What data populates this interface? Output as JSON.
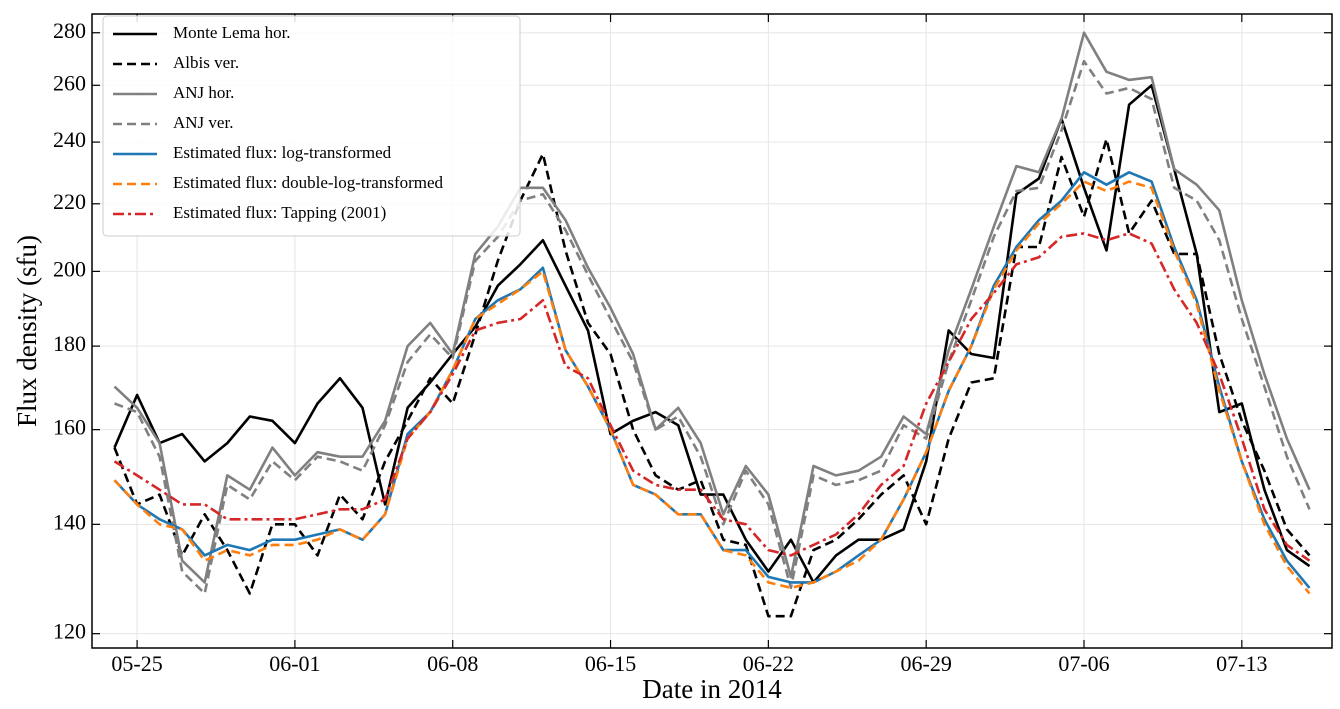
{
  "chart_data": {
    "type": "line",
    "x_label": "Date in 2014",
    "y_label": "Flux density (sfu)",
    "x": [
      "05-24",
      "05-25",
      "05-26",
      "05-27",
      "05-28",
      "05-29",
      "05-30",
      "05-31",
      "06-01",
      "06-02",
      "06-03",
      "06-04",
      "06-05",
      "06-06",
      "06-07",
      "06-08",
      "06-09",
      "06-10",
      "06-11",
      "06-12",
      "06-13",
      "06-14",
      "06-15",
      "06-16",
      "06-17",
      "06-18",
      "06-19",
      "06-20",
      "06-21",
      "06-22",
      "06-23",
      "06-24",
      "06-25",
      "06-26",
      "06-27",
      "06-28",
      "06-29",
      "06-30",
      "07-01",
      "07-02",
      "07-03",
      "07-04",
      "07-05",
      "07-06",
      "07-07",
      "07-08",
      "07-09",
      "07-10",
      "07-11",
      "07-12",
      "07-13",
      "07-14",
      "07-15",
      "07-16"
    ],
    "xlim": [
      "05-23",
      "07-17"
    ],
    "xticks": [
      "05-25",
      "06-01",
      "06-08",
      "06-15",
      "06-22",
      "06-29",
      "07-06",
      "07-13"
    ],
    "ylim": [
      117.6,
      287.5
    ],
    "yticks": [
      120,
      140,
      160,
      180,
      200,
      220,
      240,
      260,
      280
    ],
    "y_scale": "log",
    "grid": true,
    "legend": "upper left",
    "series": [
      {
        "name": "Monte Lema hor.",
        "color": "#000000",
        "dash": "solid",
        "values": [
          156,
          168,
          157,
          159,
          153,
          157,
          163,
          162,
          157,
          166,
          172,
          165,
          144,
          165,
          171,
          178,
          185,
          196,
          202,
          209,
          196,
          184,
          159,
          162,
          164,
          161,
          146,
          146,
          137,
          131,
          137,
          129,
          134,
          137,
          137,
          139,
          153,
          184,
          178,
          177,
          223,
          228,
          248,
          225,
          206,
          253,
          260,
          231,
          205,
          164,
          166,
          147,
          135,
          132
        ]
      },
      {
        "name": "Albis ver.",
        "color": "#000000",
        "dash": "dashed",
        "values": [
          156,
          144,
          146,
          134,
          142,
          135,
          127,
          140,
          140,
          134,
          146,
          141,
          153,
          162,
          172,
          166,
          183,
          203,
          221,
          236,
          206,
          186,
          178,
          160,
          150,
          147,
          149,
          137,
          136,
          123,
          123,
          135,
          137,
          141,
          146,
          150,
          140,
          158,
          171,
          172,
          207,
          207,
          235,
          216,
          241,
          211,
          221,
          205,
          205,
          178,
          162,
          151,
          139,
          134
        ]
      },
      {
        "name": "ANJ hor.",
        "color": "#808080",
        "dash": "solid",
        "values": [
          170,
          165,
          157,
          133,
          129,
          150,
          147,
          156,
          150,
          155,
          154,
          154,
          162,
          180,
          186,
          178,
          205,
          213,
          225,
          225,
          215,
          201,
          190,
          178,
          160,
          165,
          157,
          142,
          152,
          146,
          130,
          152,
          150,
          151,
          154,
          163,
          159,
          179,
          195,
          213,
          232,
          230,
          248,
          280,
          265,
          262,
          263,
          231,
          226,
          218,
          192,
          173,
          158,
          147
        ]
      },
      {
        "name": "ANJ ver.",
        "color": "#808080",
        "dash": "dashed",
        "values": [
          166,
          164,
          154,
          131,
          127,
          148,
          145,
          153,
          149,
          154,
          153,
          151,
          161,
          176,
          183,
          177,
          203,
          210,
          221,
          223,
          212,
          199,
          187,
          176,
          160,
          163,
          154,
          140,
          151,
          144,
          128,
          150,
          148,
          149,
          151,
          161,
          158,
          176,
          192,
          210,
          224,
          225,
          244,
          269,
          257,
          259,
          255,
          225,
          221,
          209,
          187,
          170,
          154,
          143
        ]
      },
      {
        "name": "Estimated flux: log-transformed",
        "color": "#1f77b4",
        "dash": "solid",
        "values": [
          149,
          144,
          141,
          139,
          134,
          136,
          135,
          137,
          137,
          138,
          139,
          137,
          142,
          159,
          164,
          174,
          187,
          192,
          195,
          201,
          179,
          170,
          160,
          148,
          146,
          142,
          142,
          135,
          135,
          130,
          129,
          129,
          131,
          134,
          137,
          145,
          155,
          169,
          180,
          196,
          207,
          215,
          221,
          230,
          226,
          230,
          227,
          207,
          192,
          170,
          153,
          141,
          133,
          128
        ]
      },
      {
        "name": "Estimated flux: double-log-transformed",
        "color": "#ff7f0e",
        "dash": "dashed",
        "values": [
          149,
          144,
          140,
          139,
          133,
          135,
          134,
          136,
          136,
          137,
          139,
          137,
          142,
          158,
          164,
          174,
          187,
          191,
          195,
          200,
          179,
          170,
          160,
          148,
          146,
          142,
          142,
          135,
          134,
          129,
          128,
          129,
          131,
          133,
          137,
          145,
          155,
          169,
          180,
          195,
          206,
          214,
          220,
          227,
          224,
          227,
          225,
          206,
          191,
          169,
          153,
          140,
          132,
          127
        ]
      },
      {
        "name": "Estimated flux: Tapping (2001)",
        "color": "#d62728",
        "dash": "dashdot",
        "values": [
          153,
          150,
          147,
          144,
          144,
          141,
          141,
          141,
          141,
          142,
          143,
          143,
          145,
          158,
          164,
          173,
          184,
          186,
          187,
          192,
          175,
          172,
          161,
          151,
          148,
          147,
          147,
          141,
          140,
          135,
          134,
          136,
          138,
          142,
          148,
          152,
          166,
          176,
          187,
          194,
          202,
          204,
          210,
          211,
          209,
          211,
          208,
          195,
          186,
          173,
          158,
          143,
          136,
          133
        ]
      }
    ]
  }
}
